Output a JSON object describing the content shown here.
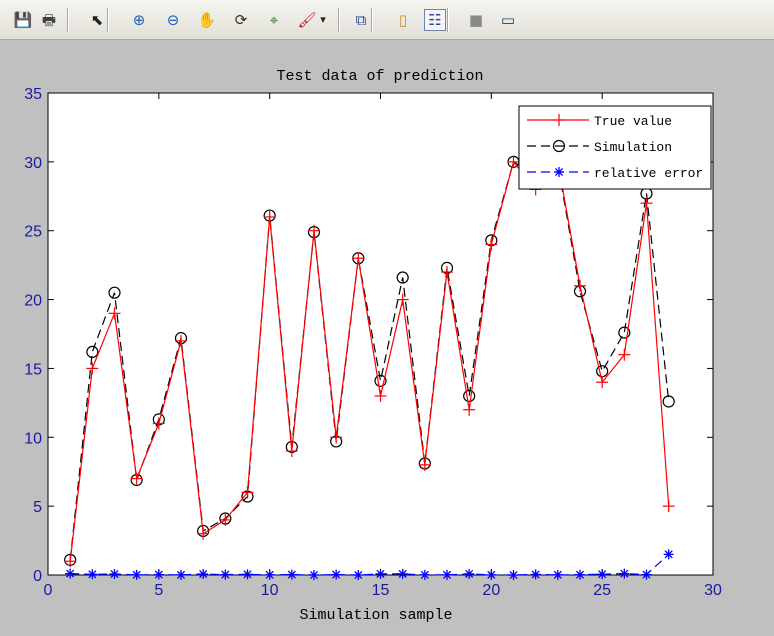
{
  "toolbar": {
    "buttons": [
      {
        "name": "save-icon",
        "glyph": "💾",
        "color": "#2a4aa0"
      },
      {
        "name": "print-icon",
        "glyph": "🖶",
        "color": "#404040"
      },
      {
        "name": "arrow-pointer-icon",
        "glyph": "⬉",
        "color": "#202020"
      },
      {
        "name": "zoom-in-icon",
        "glyph": "⊕",
        "color": "#1d5fb0"
      },
      {
        "name": "zoom-out-icon",
        "glyph": "⊖",
        "color": "#1d5fb0"
      },
      {
        "name": "pan-hand-icon",
        "glyph": "✋",
        "color": "#c08030"
      },
      {
        "name": "rotate-3d-icon",
        "glyph": "⟳",
        "color": "#303030"
      },
      {
        "name": "data-cursor-icon",
        "glyph": "⌖",
        "color": "#2a7a2a"
      },
      {
        "name": "brush-icon",
        "glyph": "🖌",
        "color": "#c02020"
      },
      {
        "name": "dropdown-arrow-icon",
        "glyph": "▾",
        "color": "#202020"
      },
      {
        "name": "link-plot-icon",
        "glyph": "⧉",
        "color": "#2a4a90"
      },
      {
        "name": "colorbar-icon",
        "glyph": "▯",
        "color": "#d08a20"
      },
      {
        "name": "legend-icon",
        "glyph": "☷",
        "color": "#2a4a90"
      },
      {
        "name": "hide-plot-tools-icon",
        "glyph": "■",
        "color": "#8a8a8a"
      },
      {
        "name": "show-plot-tools-icon",
        "glyph": "▭",
        "color": "#1a3a80"
      }
    ]
  },
  "colors": {
    "true_value": "#ff0000",
    "simulation": "#000000",
    "relative_error": "#0000ff",
    "figure_bg": "#c0c0c0",
    "axes_bg": "#ffffff",
    "tick_label": "#1a1aa0"
  },
  "chart_data": {
    "type": "line",
    "title": "Test data of prediction",
    "xlabel": "Simulation sample",
    "ylabel": "",
    "xlim": [
      0,
      30
    ],
    "ylim": [
      0,
      35
    ],
    "xticks": [
      0,
      5,
      10,
      15,
      20,
      25,
      30
    ],
    "yticks": [
      0,
      5,
      10,
      15,
      20,
      25,
      30,
      35
    ],
    "grid": false,
    "legend_position": "top-right",
    "x": [
      1,
      2,
      3,
      4,
      5,
      6,
      7,
      8,
      9,
      10,
      11,
      12,
      13,
      14,
      15,
      16,
      17,
      18,
      19,
      20,
      21,
      22,
      23,
      24,
      25,
      26,
      27,
      28
    ],
    "series": [
      {
        "name": "True value",
        "marker": "plus",
        "line": "solid",
        "color": "#ff0000",
        "values": [
          1,
          15,
          19,
          7,
          11,
          17,
          3,
          4,
          6,
          26,
          9,
          25,
          10,
          23,
          13,
          20,
          8,
          22,
          12,
          24,
          30,
          28,
          30,
          21,
          14,
          16,
          27,
          5
        ]
      },
      {
        "name": "Simulation",
        "marker": "circle",
        "line": "dashed",
        "color": "#000000",
        "values": [
          1.1,
          16.2,
          20.5,
          6.9,
          11.3,
          17.2,
          3.2,
          4.1,
          5.7,
          26.1,
          9.3,
          24.9,
          9.7,
          23.0,
          14.1,
          21.6,
          8.1,
          22.3,
          13.0,
          24.3,
          30.0,
          29.0,
          29.8,
          20.6,
          14.8,
          17.6,
          27.7,
          12.6
        ]
      },
      {
        "name": "relative error",
        "marker": "asterisk",
        "line": "dashed",
        "color": "#0000ff",
        "values": [
          0.1,
          0.05,
          0.07,
          0.01,
          0.03,
          0.01,
          0.07,
          0.03,
          0.05,
          0.01,
          0.03,
          0.0,
          0.03,
          0.0,
          0.08,
          0.08,
          0.01,
          0.01,
          0.08,
          0.01,
          0.0,
          0.04,
          0.01,
          0.02,
          0.06,
          0.1,
          0.03,
          1.5
        ]
      }
    ]
  }
}
